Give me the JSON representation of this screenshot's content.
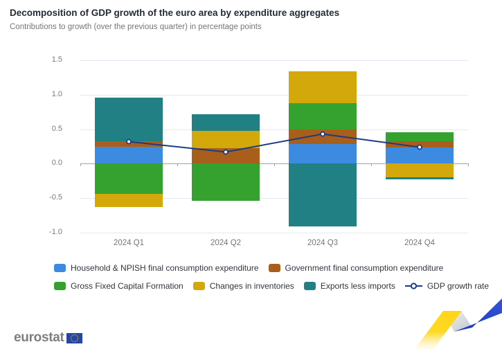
{
  "header": {
    "title": "Decomposition of GDP growth of the euro area by expenditure aggregates",
    "subtitle": "Contributions to growth (over the previous quarter) in percentage points"
  },
  "chart_data": {
    "type": "bar",
    "subtype": "stacked-bars-with-line-overlay",
    "categories": [
      "2024 Q1",
      "2024 Q2",
      "2024 Q3",
      "2024 Q4"
    ],
    "series": [
      {
        "name": "Household & NPISH final consumption expenditure",
        "color": "#3d8be0",
        "values": [
          0.24,
          0.0,
          0.29,
          0.23
        ]
      },
      {
        "name": "Government final consumption expenditure",
        "color": "#a95f1c",
        "values": [
          0.09,
          0.22,
          0.21,
          0.1
        ]
      },
      {
        "name": "Gross Fixed Capital Formation",
        "color": "#35a12f",
        "values": [
          -0.44,
          -0.54,
          0.38,
          0.13
        ]
      },
      {
        "name": "Changes in inventories",
        "color": "#d2a80b",
        "values": [
          -0.19,
          0.26,
          0.46,
          -0.2
        ]
      },
      {
        "name": "Exports less imports",
        "color": "#218083",
        "values": [
          0.63,
          0.24,
          -0.91,
          -0.03
        ]
      }
    ],
    "line_series": {
      "name": "GDP growth rate",
      "color": "#1b3c85",
      "values": [
        0.32,
        0.17,
        0.43,
        0.24
      ]
    },
    "ylim": [
      -1.0,
      1.5
    ],
    "yticks": [
      1.5,
      1.0,
      0.5,
      0.0,
      -0.5,
      -1.0
    ],
    "ytick_labels": [
      "1.5",
      "1.0",
      "0.5",
      "0.0",
      "-0.5",
      "-1.0"
    ],
    "xlabel": "",
    "ylabel": "",
    "grid": true,
    "legend_position": "bottom"
  },
  "footer": {
    "logo_text": "eurostat",
    "decoration_colors": {
      "yellow": "#ffd617",
      "silver": "#c9ced4",
      "blue": "#2745c6"
    }
  }
}
